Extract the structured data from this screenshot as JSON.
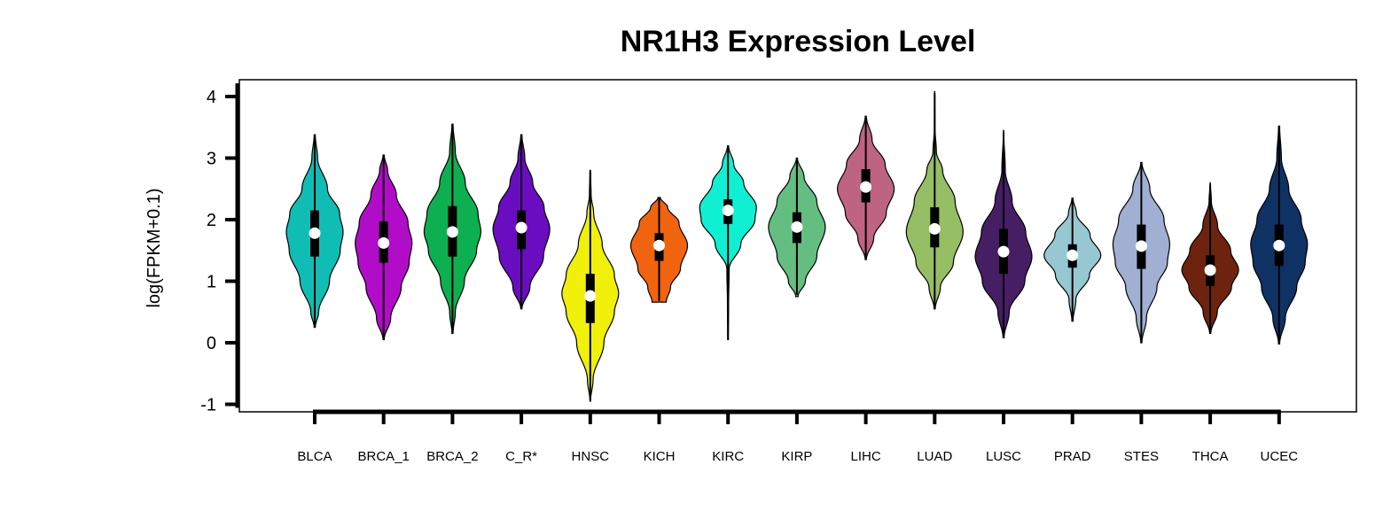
{
  "chart_data": {
    "type": "violin",
    "title": "NR1H3 Expression Level",
    "ylabel": "log(FPKM+0.1)",
    "xlabel": "",
    "ylim": [
      -1.1,
      4.3
    ],
    "yticks": [
      -1,
      0,
      1,
      2,
      3,
      4
    ],
    "grid": false,
    "categories": [
      "BLCA",
      "BRCA_1",
      "BRCA_2",
      "C_R*",
      "HNSC",
      "KICH",
      "KIRC",
      "KIRP",
      "LIHC",
      "LUAD",
      "LUSC",
      "PRAD",
      "STES",
      "THCA",
      "UCEC"
    ],
    "colors": [
      "#10BDB4",
      "#B10DC9",
      "#0DB050",
      "#6A0DC0",
      "#F0F00A",
      "#F0640F",
      "#0FF0D2",
      "#64BE82",
      "#BE6482",
      "#96BE64",
      "#461E64",
      "#96C8D2",
      "#A0AFD2",
      "#6E230F",
      "#0F3264"
    ],
    "violins": [
      {
        "min": 0.28,
        "max": 3.35,
        "q1": 1.4,
        "median": 1.78,
        "q3": 2.15,
        "whisker_low": 0.28,
        "whisker_high": 3.35,
        "kde_x": [
          0.25,
          0.5,
          1.0,
          1.5,
          1.8,
          2.1,
          2.5,
          3.0,
          3.38
        ],
        "kde_d": [
          0.02,
          0.14,
          0.52,
          0.9,
          1.0,
          0.88,
          0.45,
          0.1,
          0.02
        ]
      },
      {
        "min": 0.08,
        "max": 3.03,
        "q1": 1.3,
        "median": 1.62,
        "q3": 1.97,
        "whisker_low": 0.08,
        "whisker_high": 3.03,
        "kde_x": [
          0.05,
          0.4,
          0.9,
          1.3,
          1.62,
          1.95,
          2.4,
          2.8,
          3.05
        ],
        "kde_d": [
          0.02,
          0.25,
          0.62,
          0.9,
          1.0,
          0.86,
          0.45,
          0.14,
          0.02
        ]
      },
      {
        "min": 0.18,
        "max": 3.52,
        "q1": 1.4,
        "median": 1.8,
        "q3": 2.22,
        "whisker_low": 0.18,
        "whisker_high": 3.52,
        "kde_x": [
          0.15,
          0.5,
          1.0,
          1.5,
          1.8,
          2.1,
          2.6,
          3.1,
          3.55
        ],
        "kde_d": [
          0.02,
          0.1,
          0.42,
          0.85,
          1.0,
          0.9,
          0.45,
          0.1,
          0.02
        ]
      },
      {
        "min": 0.58,
        "max": 3.35,
        "q1": 1.52,
        "median": 1.87,
        "q3": 2.15,
        "whisker_low": 0.58,
        "whisker_high": 3.35,
        "kde_x": [
          0.55,
          0.9,
          1.4,
          1.85,
          2.2,
          2.6,
          3.0,
          3.38
        ],
        "kde_d": [
          0.02,
          0.3,
          0.78,
          1.0,
          0.8,
          0.4,
          0.12,
          0.02
        ]
      },
      {
        "min": -0.92,
        "max": 2.78,
        "q1": 0.32,
        "median": 0.76,
        "q3": 1.12,
        "whisker_low": -0.92,
        "whisker_high": 2.78,
        "kde_x": [
          -0.95,
          -0.6,
          0.0,
          0.5,
          0.8,
          1.1,
          1.6,
          2.1,
          2.4,
          2.8
        ],
        "kde_d": [
          0.01,
          0.1,
          0.48,
          0.85,
          1.0,
          0.85,
          0.42,
          0.12,
          0.03,
          0.01
        ]
      },
      {
        "min": 0.68,
        "max": 2.35,
        "q1": 1.33,
        "median": 1.58,
        "q3": 1.78,
        "whisker_low": 0.68,
        "whisker_high": 2.35,
        "kde_x": [
          0.66,
          0.9,
          1.2,
          1.58,
          1.95,
          2.2,
          2.36
        ],
        "kde_d": [
          0.25,
          0.4,
          0.75,
          1.0,
          0.7,
          0.3,
          0.04
        ]
      },
      {
        "min": 0.05,
        "max": 3.18,
        "q1": 1.93,
        "median": 2.15,
        "q3": 2.33,
        "whisker_low": 0.05,
        "whisker_high": 3.18,
        "kde_x": [
          0.05,
          0.6,
          1.2,
          1.6,
          2.0,
          2.2,
          2.6,
          2.9,
          3.2
        ],
        "kde_d": [
          0.01,
          0.02,
          0.04,
          0.45,
          0.95,
          1.0,
          0.55,
          0.2,
          0.02
        ]
      },
      {
        "min": 0.78,
        "max": 2.97,
        "q1": 1.62,
        "median": 1.88,
        "q3": 2.12,
        "whisker_low": 0.78,
        "whisker_high": 2.97,
        "kde_x": [
          0.75,
          1.0,
          1.4,
          1.88,
          2.3,
          2.7,
          3.0
        ],
        "kde_d": [
          0.04,
          0.3,
          0.7,
          1.0,
          0.7,
          0.25,
          0.02
        ]
      },
      {
        "min": 1.38,
        "max": 3.65,
        "q1": 2.28,
        "median": 2.53,
        "q3": 2.82,
        "whisker_low": 1.38,
        "whisker_high": 3.65,
        "kde_x": [
          1.35,
          1.7,
          2.1,
          2.5,
          2.9,
          3.3,
          3.68
        ],
        "kde_d": [
          0.02,
          0.28,
          0.72,
          1.0,
          0.68,
          0.22,
          0.02
        ]
      },
      {
        "min": 0.58,
        "max": 4.05,
        "q1": 1.55,
        "median": 1.85,
        "q3": 2.2,
        "whisker_low": 0.58,
        "whisker_high": 4.05,
        "kde_x": [
          0.55,
          0.9,
          1.3,
          1.8,
          2.3,
          2.8,
          3.1,
          3.5,
          4.08
        ],
        "kde_d": [
          0.02,
          0.2,
          0.66,
          1.0,
          0.72,
          0.28,
          0.06,
          0.01,
          0.005
        ]
      },
      {
        "min": 0.1,
        "max": 3.42,
        "q1": 1.12,
        "median": 1.48,
        "q3": 1.85,
        "whisker_low": 0.1,
        "whisker_high": 3.42,
        "kde_x": [
          0.08,
          0.5,
          1.0,
          1.4,
          1.8,
          2.3,
          2.8,
          3.45
        ],
        "kde_d": [
          0.02,
          0.2,
          0.75,
          1.0,
          0.78,
          0.3,
          0.06,
          0.005
        ]
      },
      {
        "min": 0.38,
        "max": 2.33,
        "q1": 1.22,
        "median": 1.42,
        "q3": 1.6,
        "whisker_low": 0.38,
        "whisker_high": 2.33,
        "kde_x": [
          0.35,
          0.7,
          1.1,
          1.42,
          1.75,
          2.1,
          2.35
        ],
        "kde_d": [
          0.02,
          0.12,
          0.6,
          1.0,
          0.62,
          0.14,
          0.02
        ]
      },
      {
        "min": 0.02,
        "max": 2.9,
        "q1": 1.2,
        "median": 1.57,
        "q3": 1.92,
        "whisker_low": 0.02,
        "whisker_high": 2.9,
        "kde_x": [
          0.0,
          0.4,
          0.9,
          1.3,
          1.6,
          2.0,
          2.5,
          2.93
        ],
        "kde_d": [
          0.02,
          0.18,
          0.55,
          0.92,
          1.0,
          0.8,
          0.3,
          0.02
        ]
      },
      {
        "min": 0.18,
        "max": 2.57,
        "q1": 0.92,
        "median": 1.18,
        "q3": 1.42,
        "whisker_low": 0.18,
        "whisker_high": 2.57,
        "kde_x": [
          0.15,
          0.5,
          0.9,
          1.18,
          1.5,
          1.9,
          2.3,
          2.6
        ],
        "kde_d": [
          0.02,
          0.25,
          0.75,
          1.0,
          0.72,
          0.26,
          0.04,
          0.005
        ]
      },
      {
        "min": 0.0,
        "max": 3.5,
        "q1": 1.25,
        "median": 1.58,
        "q3": 1.92,
        "whisker_low": 0.0,
        "whisker_high": 3.5,
        "kde_x": [
          -0.02,
          0.4,
          0.9,
          1.3,
          1.6,
          2.0,
          2.5,
          3.0,
          3.52
        ],
        "kde_d": [
          0.02,
          0.22,
          0.62,
          0.92,
          1.0,
          0.78,
          0.34,
          0.08,
          0.02
        ]
      }
    ]
  }
}
